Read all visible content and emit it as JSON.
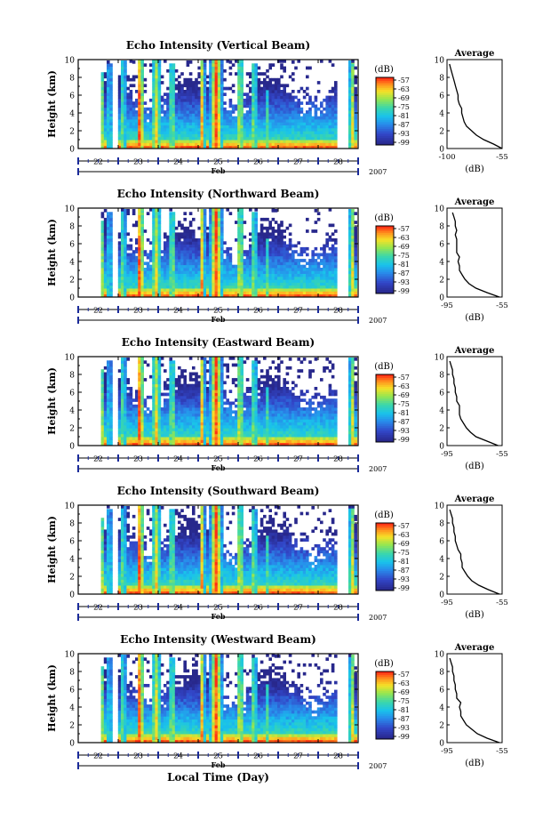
{
  "figure": {
    "xlabel": "Local Time (Day)",
    "month_label": "Feb",
    "year_label": "2007"
  },
  "panels": [
    {
      "title": "Echo Intensity (Vertical Beam)",
      "profile_title": "Average",
      "profile_xlabel": "(dB)",
      "cbar_label": "(dB)",
      "profile_xticks": [
        "-100",
        "-55"
      ]
    },
    {
      "title": "Echo Intensity (Northward Beam)",
      "profile_title": "Average",
      "profile_xlabel": "(dB)",
      "cbar_label": "(dB)",
      "profile_xticks": [
        "-95",
        "-55"
      ]
    },
    {
      "title": "Echo Intensity (Eastward Beam)",
      "profile_title": "Average",
      "profile_xlabel": "(dB)",
      "cbar_label": "(dB)",
      "profile_xticks": [
        "-95",
        "-55"
      ]
    },
    {
      "title": "Echo Intensity (Southward Beam)",
      "profile_title": "Average",
      "profile_xlabel": "(dB)",
      "cbar_label": "(dB)",
      "profile_xticks": [
        "-95",
        "-55"
      ]
    },
    {
      "title": "Echo Intensity (Westward Beam)",
      "profile_title": "Average",
      "profile_xlabel": "(dB)",
      "cbar_label": "(dB)",
      "profile_xticks": [
        "-95",
        "-55"
      ]
    }
  ],
  "chart_data": {
    "type": "heatmap",
    "ylabel": "Height (km)",
    "yticks": [
      "0",
      "2",
      "4",
      "6",
      "8",
      "10"
    ],
    "ylim": [
      0,
      10
    ],
    "xticks": [
      "22",
      "23",
      "24",
      "25",
      "26",
      "27",
      "28"
    ],
    "xlim": [
      22,
      29
    ],
    "colorbar_ticks": [
      "-57",
      "-63",
      "-69",
      "-75",
      "-81",
      "-87",
      "-93",
      "-99"
    ],
    "colorbar_range": [
      -99,
      -57
    ],
    "colors": {
      "low": "#2a2a8c",
      "mid": "#18c0e8",
      "high": "#ff3010"
    },
    "profile_y": [
      0,
      0.5,
      1,
      1.5,
      2,
      2.5,
      3,
      3.5,
      4,
      4.5,
      5,
      5.5,
      6,
      6.5,
      7,
      7.5,
      8,
      8.5,
      9,
      9.5
    ],
    "profiles": [
      {
        "xlim": [
          -100,
          -55
        ],
        "values": [
          -55,
          -62,
          -70,
          -76,
          -80,
          -84,
          -86,
          -87,
          -88,
          -88,
          -90,
          -91,
          -91,
          -92,
          -93,
          -94,
          -95,
          -96,
          -97,
          -98
        ]
      },
      {
        "xlim": [
          -95,
          -55
        ],
        "values": [
          -57,
          -66,
          -74,
          -79,
          -82,
          -84,
          -86,
          -86,
          -87,
          -86,
          -88,
          -88,
          -88,
          -88,
          -89,
          -88,
          -89,
          -89,
          -90,
          -91
        ]
      },
      {
        "xlim": [
          -95,
          -55
        ],
        "values": [
          -58,
          -66,
          -74,
          -78,
          -81,
          -83,
          -85,
          -86,
          -86,
          -86,
          -88,
          -88,
          -89,
          -89,
          -90,
          -90,
          -91,
          -91,
          -92,
          -93
        ]
      },
      {
        "xlim": [
          -95,
          -55
        ],
        "values": [
          -57,
          -65,
          -72,
          -77,
          -80,
          -82,
          -84,
          -84,
          -85,
          -85,
          -87,
          -88,
          -89,
          -89,
          -90,
          -90,
          -91,
          -91,
          -92,
          -93
        ]
      },
      {
        "xlim": [
          -95,
          -55
        ],
        "values": [
          -57,
          -66,
          -73,
          -77,
          -81,
          -83,
          -85,
          -85,
          -86,
          -85,
          -88,
          -88,
          -89,
          -89,
          -90,
          -90,
          -91,
          -91,
          -92,
          -93
        ]
      }
    ]
  }
}
